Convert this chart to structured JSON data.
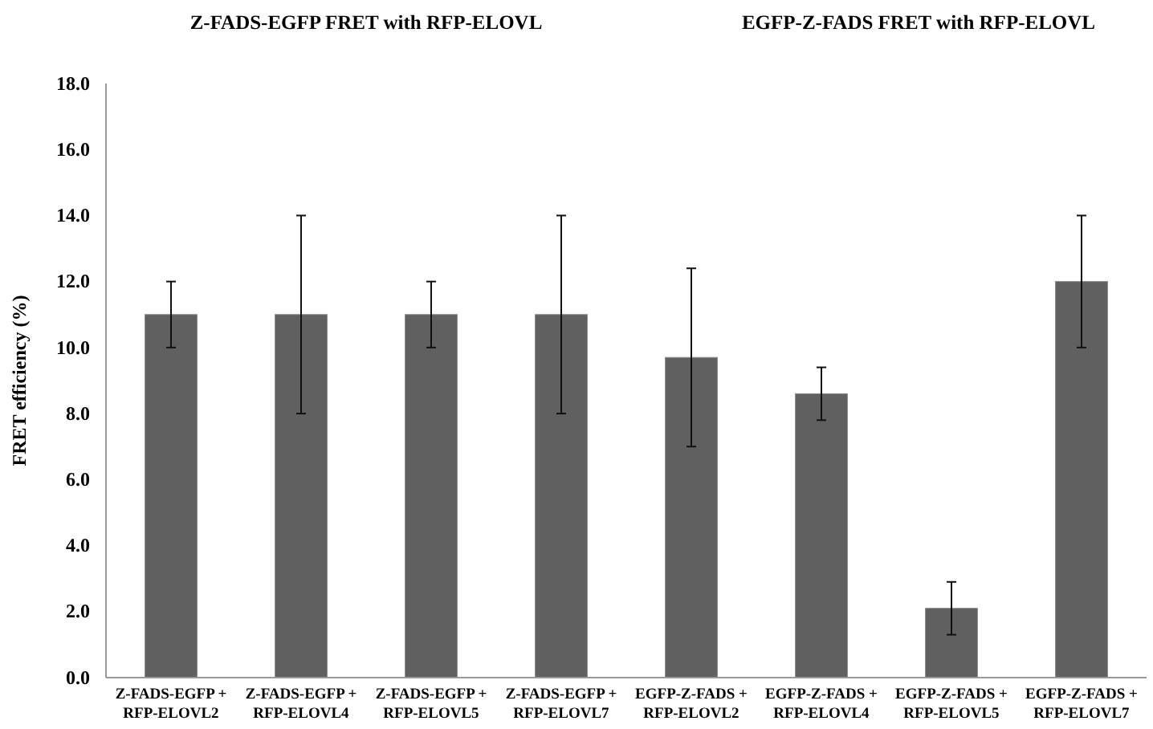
{
  "chart_data": {
    "type": "bar",
    "title": "Z-FADS-EGFP FRET with RFP-ELOVL",
    "annotations": [
      "EGFP-Z-FADS FRET with RFP-ELOVL"
    ],
    "ylabel": "FRET efficiency (%)",
    "categories": [
      "Z-FADS-EGFP + RFP-ELOVL2",
      "Z-FADS-EGFP + RFP-ELOVL4",
      "Z-FADS-EGFP + RFP-ELOVL5",
      "Z-FADS-EGFP + RFP-ELOVL7",
      "EGFP-Z-FADS + RFP-ELOVL2",
      "EGFP-Z-FADS + RFP-ELOVL4",
      "EGFP-Z-FADS + RFP-ELOVL5",
      "EGFP-Z-FADS + RFP-ELOVL7"
    ],
    "values": [
      11,
      11,
      11,
      11,
      9.7,
      8.6,
      2.1,
      12
    ],
    "errors": [
      1,
      3,
      1,
      3,
      2.7,
      0.8,
      0.8,
      2
    ],
    "color": "#606060",
    "ylim": [
      0,
      18
    ],
    "yticks": [
      {
        "value": 0,
        "label": "0.0"
      },
      {
        "value": 2,
        "label": "2.0"
      },
      {
        "value": 4,
        "label": "4.0"
      },
      {
        "value": 6,
        "label": "6.0"
      },
      {
        "value": 8,
        "label": "8.0"
      },
      {
        "value": 10,
        "label": "10.0"
      },
      {
        "value": 12,
        "label": "12.0"
      },
      {
        "value": 14,
        "label": "14.0"
      },
      {
        "value": 16,
        "label": "16.0"
      },
      {
        "value": 18,
        "label": "18.0"
      }
    ]
  }
}
